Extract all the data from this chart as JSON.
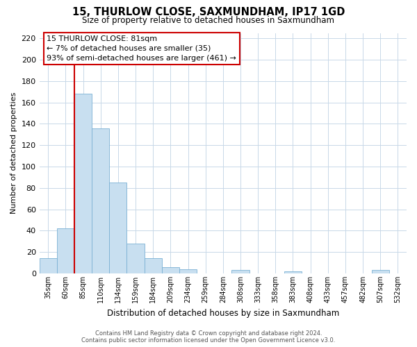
{
  "title": "15, THURLOW CLOSE, SAXMUNDHAM, IP17 1GD",
  "subtitle": "Size of property relative to detached houses in Saxmundham",
  "xlabel": "Distribution of detached houses by size in Saxmundham",
  "ylabel": "Number of detached properties",
  "bar_labels": [
    "35sqm",
    "60sqm",
    "85sqm",
    "110sqm",
    "134sqm",
    "159sqm",
    "184sqm",
    "209sqm",
    "234sqm",
    "259sqm",
    "284sqm",
    "308sqm",
    "333sqm",
    "358sqm",
    "383sqm",
    "408sqm",
    "433sqm",
    "457sqm",
    "482sqm",
    "507sqm",
    "532sqm"
  ],
  "bar_values": [
    14,
    42,
    168,
    136,
    85,
    28,
    14,
    6,
    4,
    0,
    0,
    3,
    0,
    0,
    2,
    0,
    0,
    0,
    0,
    3,
    0
  ],
  "bar_color": "#c8dff0",
  "bar_edge_color": "#7ab0d4",
  "marker_color": "#cc0000",
  "ylim": [
    0,
    225
  ],
  "yticks": [
    0,
    20,
    40,
    60,
    80,
    100,
    120,
    140,
    160,
    180,
    200,
    220
  ],
  "annotation_title": "15 THURLOW CLOSE: 81sqm",
  "annotation_line1": "← 7% of detached houses are smaller (35)",
  "annotation_line2": "93% of semi-detached houses are larger (461) →",
  "annotation_box_color": "#ffffff",
  "annotation_box_edge": "#cc0000",
  "footer_line1": "Contains HM Land Registry data © Crown copyright and database right 2024.",
  "footer_line2": "Contains public sector information licensed under the Open Government Licence v3.0.",
  "background_color": "#ffffff",
  "grid_color": "#c8d8e8"
}
